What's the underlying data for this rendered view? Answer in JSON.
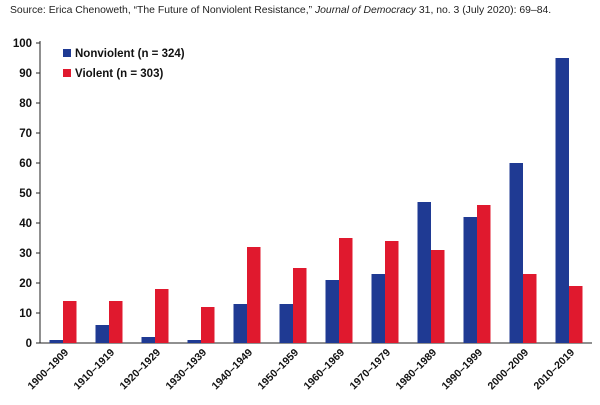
{
  "source": {
    "prefix": "Source: Erica Chenoweth, “The Future of Nonviolent Resistance,” ",
    "journal": "Journal of Democracy",
    "suffix": " 31, no. 3 (July 2020): 69–84."
  },
  "chart_data": {
    "type": "bar",
    "categories": [
      "1900–1909",
      "1910–1919",
      "1920–1929",
      "1930–1939",
      "1940–1949",
      "1950–1959",
      "1960–1969",
      "1970–1979",
      "1980–1989",
      "1990–1999",
      "2000–2009",
      "2010–2019"
    ],
    "series": [
      {
        "name": "Nonviolent (n = 324)",
        "color": "#1f3a93",
        "values": [
          1,
          6,
          2,
          1,
          13,
          13,
          21,
          23,
          47,
          42,
          60,
          95
        ]
      },
      {
        "name": "Violent (n = 303)",
        "color": "#e0192e",
        "values": [
          14,
          14,
          18,
          12,
          32,
          25,
          35,
          34,
          31,
          46,
          23,
          19
        ]
      }
    ],
    "ylim": [
      0,
      100
    ],
    "yticks": [
      0,
      10,
      20,
      30,
      40,
      50,
      60,
      70,
      80,
      90,
      100
    ],
    "grid": false,
    "legend": "top-left"
  }
}
